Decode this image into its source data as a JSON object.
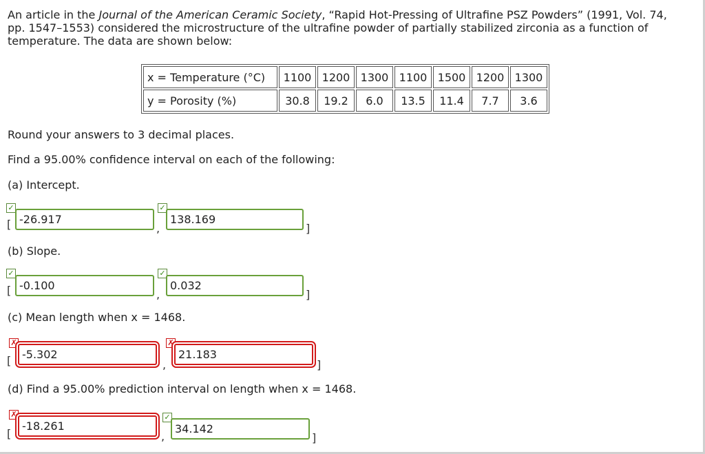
{
  "intro": {
    "before_journal": "An article in the ",
    "journal": "Journal of the American Ceramic Society",
    "after_journal_line1": ", “Rapid Hot-Pressing of Ultrafine PSZ Powders” (1991, Vol. 74,",
    "line2": "pp. 1547–1553) considered the microstructure of the ultrafine powder of partially stabilized zirconia as a function of",
    "line3": "temperature. The data are shown below:"
  },
  "table": {
    "x_label": "x = Temperature (°C)",
    "y_label": "y = Porosity (%)",
    "x_values": [
      "1100",
      "1200",
      "1300",
      "1100",
      "1500",
      "1200",
      "1300"
    ],
    "y_values": [
      "30.8",
      "19.2",
      "6.0",
      "13.5",
      "11.4",
      "7.7",
      "3.6"
    ]
  },
  "instructions": {
    "round": "Round your answers to 3 decimal places.",
    "find": "Find a 95.00% confidence interval on each of the following:"
  },
  "parts": {
    "a": {
      "label": "(a) Intercept.",
      "lower": "-26.917",
      "upper": "138.169",
      "lower_status": "correct",
      "upper_status": "correct"
    },
    "b": {
      "label": "(b) Slope.",
      "lower": "-0.100",
      "upper": "0.032",
      "lower_status": "correct",
      "upper_status": "correct"
    },
    "c": {
      "label": "(c) Mean length when x = 1468.",
      "lower": "-5.302",
      "upper": "21.183",
      "lower_status": "incorrect",
      "upper_status": "incorrect"
    },
    "d": {
      "label": "(d) Find a 95.00% prediction interval on length when x = 1468.",
      "lower": "-18.261",
      "upper": "34.142",
      "lower_status": "incorrect",
      "upper_status": "correct"
    }
  },
  "symbols": {
    "open": "[",
    "close": "]",
    "comma": ",",
    "check": "✓",
    "cross": "✗"
  },
  "colors": {
    "correct": "#69a03a",
    "incorrect": "#d21a1a"
  }
}
